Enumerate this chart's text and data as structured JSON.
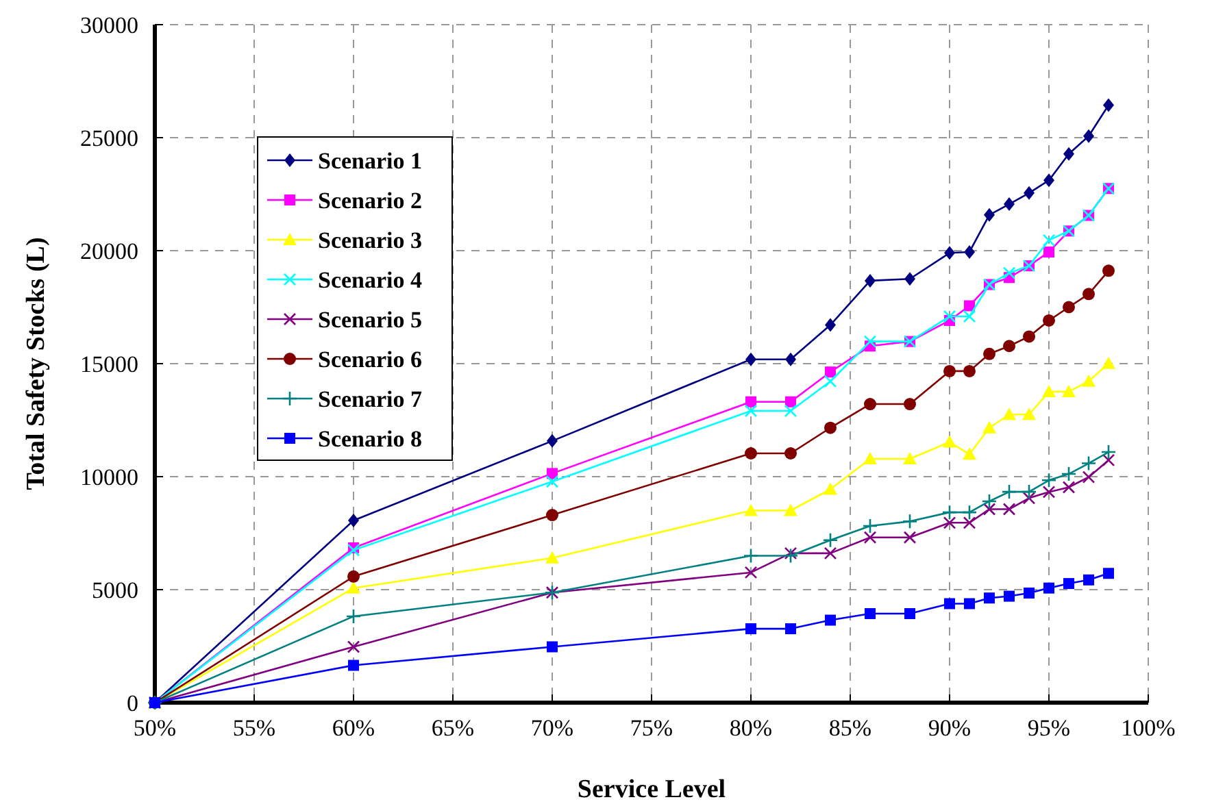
{
  "chart_data": {
    "type": "line",
    "xlabel": "Service Level",
    "ylabel": "Total Safety Stocks (L)",
    "x": [
      50,
      60,
      70,
      80,
      82,
      84,
      86,
      88,
      90,
      91,
      92,
      93,
      94,
      95,
      96,
      97,
      98
    ],
    "xlim": [
      50,
      100
    ],
    "xticks": [
      {
        "value": 50,
        "label": "50%"
      },
      {
        "value": 55,
        "label": "55%"
      },
      {
        "value": 60,
        "label": "60%"
      },
      {
        "value": 65,
        "label": "65%"
      },
      {
        "value": 70,
        "label": "70%"
      },
      {
        "value": 75,
        "label": "75%"
      },
      {
        "value": 80,
        "label": "80%"
      },
      {
        "value": 85,
        "label": "85%"
      },
      {
        "value": 90,
        "label": "90%"
      },
      {
        "value": 95,
        "label": "95%"
      },
      {
        "value": 100,
        "label": "100%"
      }
    ],
    "ylim": [
      0,
      30000
    ],
    "yticks": [
      0,
      5000,
      10000,
      15000,
      20000,
      25000,
      30000
    ],
    "grid": true,
    "legend": "top left",
    "line_style": "solid",
    "series": [
      {
        "name": "Scenario 1",
        "color": "#000080",
        "marker": "diamond",
        "values": [
          0,
          8060,
          11580,
          15190,
          15190,
          16710,
          18670,
          18750,
          19900,
          19940,
          21580,
          22060,
          22550,
          23110,
          24280,
          25070,
          26440
        ]
      },
      {
        "name": "Scenario 2",
        "color": "#ff00ff",
        "marker": "square",
        "values": [
          0,
          6850,
          10140,
          13310,
          13310,
          14630,
          15780,
          15980,
          16910,
          17560,
          18500,
          18810,
          19330,
          19940,
          20870,
          21560,
          22750
        ]
      },
      {
        "name": "Scenario 3",
        "color": "#ffff00",
        "marker": "triangle",
        "values": [
          0,
          5070,
          6400,
          8500,
          8500,
          9440,
          10790,
          10790,
          11530,
          10990,
          12160,
          12750,
          12750,
          13760,
          13760,
          14220,
          15010
        ]
      },
      {
        "name": "Scenario 4",
        "color": "#00ffff",
        "marker": "cross",
        "values": [
          0,
          6750,
          9780,
          12910,
          12910,
          14220,
          15980,
          15980,
          17090,
          17090,
          18500,
          19010,
          19330,
          20460,
          20870,
          21560,
          22750
        ]
      },
      {
        "name": "Scenario 5",
        "color": "#800080",
        "marker": "cross",
        "values": [
          0,
          2470,
          4870,
          5760,
          6610,
          6610,
          7310,
          7310,
          7960,
          7960,
          8560,
          8560,
          9050,
          9320,
          9530,
          9980,
          10730
        ]
      },
      {
        "name": "Scenario 6",
        "color": "#800000",
        "marker": "circle",
        "values": [
          0,
          5580,
          8300,
          11030,
          11030,
          12160,
          13210,
          13210,
          14670,
          14670,
          15430,
          15780,
          16200,
          16910,
          17500,
          18080,
          19110
        ]
      },
      {
        "name": "Scenario 7",
        "color": "#008080",
        "marker": "plus",
        "values": [
          0,
          3820,
          4870,
          6500,
          6500,
          7190,
          7820,
          8020,
          8420,
          8420,
          8910,
          9330,
          9330,
          9840,
          10120,
          10590,
          11090
        ]
      },
      {
        "name": "Scenario 8",
        "color": "#0000ff",
        "marker": "square",
        "values": [
          0,
          1650,
          2470,
          3270,
          3270,
          3650,
          3940,
          3940,
          4380,
          4380,
          4630,
          4710,
          4850,
          5070,
          5270,
          5430,
          5720
        ]
      }
    ]
  }
}
